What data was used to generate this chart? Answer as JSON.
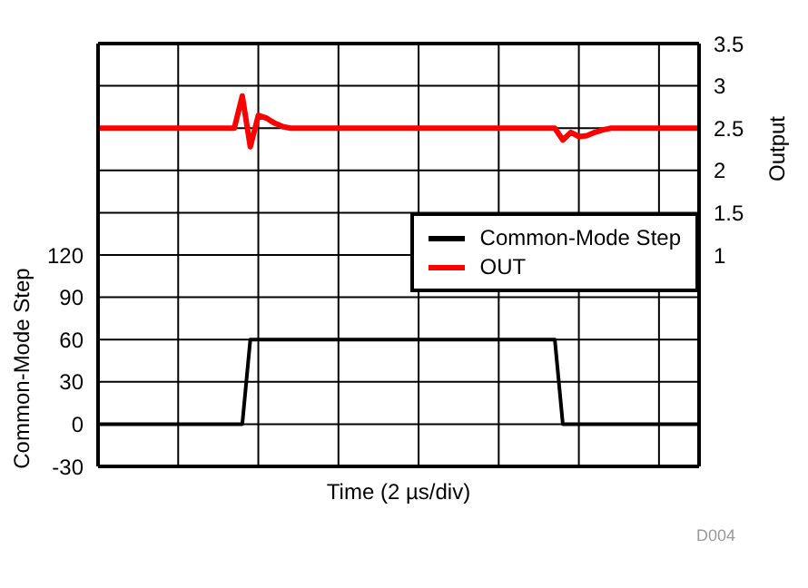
{
  "chart_data": {
    "type": "line",
    "xlabel": "Time (2 µs/div)",
    "ylabel": "Common-Mode Step",
    "y2label": "Output",
    "annotations": [
      "D004"
    ],
    "categories": [
      null,
      null,
      null,
      null,
      null,
      null,
      null,
      null,
      null,
      null,
      null,
      null,
      null,
      null,
      null,
      null,
      null,
      null,
      null,
      null,
      null,
      null,
      null,
      null,
      null,
      null,
      null,
      null,
      null,
      null,
      null,
      null,
      null,
      null,
      null,
      null,
      null,
      null,
      null,
      null,
      null,
      null,
      null,
      null,
      null,
      null,
      null,
      null,
      null,
      null,
      null,
      null,
      null,
      null,
      null,
      null,
      null,
      null,
      null,
      null,
      null,
      null,
      null,
      null,
      null,
      null,
      null,
      null,
      null,
      null,
      null,
      null,
      null,
      null,
      null,
      null
    ],
    "ylim": [
      -30,
      270
    ],
    "yticks": [
      -30,
      0,
      30,
      60,
      90,
      120,
      {
        "value": 150,
        "label": null
      },
      {
        "value": 180,
        "label": null
      },
      {
        "value": 210,
        "label": null
      },
      {
        "value": 240,
        "label": null
      },
      {
        "value": 270,
        "label": null
      }
    ],
    "y2lim": [
      -1.5,
      3.5
    ],
    "y2ticks": [
      1,
      1.5,
      2,
      2.5,
      3,
      3.5
    ],
    "grid": true,
    "legend": "right",
    "marker": "none",
    "line_style": "solid",
    "series": [
      {
        "name": "Common-Mode Step",
        "color": "#000000",
        "values": [
          0,
          0,
          0,
          0,
          0,
          0,
          0,
          0,
          0,
          0,
          0,
          0,
          0,
          0,
          0,
          0,
          0,
          0,
          0,
          60,
          60,
          60,
          60,
          60,
          60,
          60,
          60,
          60,
          60,
          60,
          60,
          60,
          60,
          60,
          60,
          60,
          60,
          60,
          60,
          60,
          60,
          60,
          60,
          60,
          60,
          60,
          60,
          60,
          60,
          60,
          60,
          60,
          60,
          60,
          60,
          60,
          60,
          60,
          0,
          0,
          0,
          0,
          0,
          0,
          0,
          0,
          0,
          0,
          0,
          0,
          0,
          0,
          0,
          0,
          0,
          0
        ]
      },
      {
        "name": "OUT",
        "color": "#ff0000",
        "axis": "y2",
        "values": [
          2.5,
          2.5,
          2.5,
          2.5,
          2.5,
          2.5,
          2.5,
          2.5,
          2.5,
          2.5,
          2.5,
          2.5,
          2.5,
          2.5,
          2.5,
          2.5,
          2.5,
          2.5,
          2.88,
          2.28,
          2.65,
          2.62,
          2.56,
          2.52,
          2.5,
          2.5,
          2.5,
          2.5,
          2.5,
          2.5,
          2.5,
          2.5,
          2.5,
          2.5,
          2.5,
          2.5,
          2.5,
          2.5,
          2.5,
          2.5,
          2.5,
          2.5,
          2.5,
          2.5,
          2.5,
          2.5,
          2.5,
          2.5,
          2.5,
          2.5,
          2.5,
          2.5,
          2.5,
          2.5,
          2.5,
          2.5,
          2.5,
          2.5,
          2.36,
          2.45,
          2.4,
          2.41,
          2.45,
          2.48,
          2.5,
          2.5,
          2.5,
          2.5,
          2.5,
          2.5,
          2.5,
          2.5,
          2.5,
          2.5,
          2.5,
          2.5
        ]
      }
    ]
  }
}
